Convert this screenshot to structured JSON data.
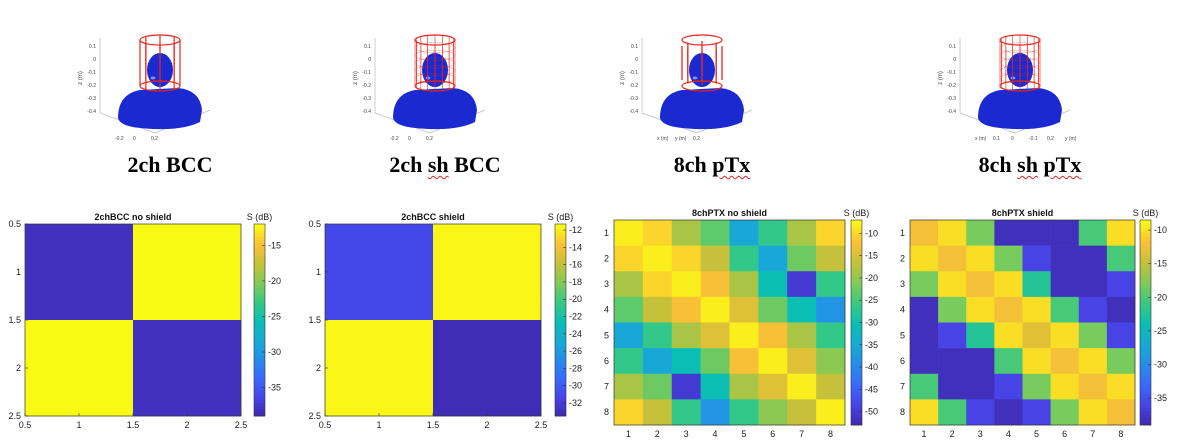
{
  "coil_panels": [
    {
      "caption_pre": "2ch ",
      "caption_mark": "",
      "caption_post": "BCC",
      "coil": "2ch-birdcage",
      "yticks": [
        "0.1",
        "0",
        "-0.1",
        "-0.2",
        "-0.3",
        "-0.4"
      ],
      "zlabel": "z (m)",
      "xticks": [
        "-0.2",
        "0",
        "0.2"
      ]
    },
    {
      "caption_pre": "2ch ",
      "caption_mark": "sh",
      "caption_post": " BCC",
      "coil": "2ch-shielded-birdcage",
      "yticks": [
        "0.1",
        "0",
        "-0.1",
        "-0.2",
        "-0.3",
        "-0.4"
      ],
      "zlabel": "z (m)",
      "xticks": [
        "-0.2",
        "0",
        "0.2"
      ]
    },
    {
      "caption_pre": "8ch ",
      "caption_mark": "pTx",
      "caption_post": "",
      "coil": "8ch-ptx",
      "yticks": [
        "0.1",
        "0",
        "-0.1",
        "-0.2",
        "-0.3",
        "-0.4"
      ],
      "zlabel": "z (m)",
      "xticks": [
        "x (m)",
        "y (m)",
        "0.2"
      ]
    },
    {
      "caption_pre": "8ch ",
      "caption_mark": "sh",
      "caption_post": " ",
      "caption_mark2": "pTx",
      "coil": "8ch-shielded-ptx",
      "yticks": [
        "0.1",
        "0",
        "-0.1",
        "-0.2",
        "-0.3",
        "-0.4"
      ],
      "zlabel": "z (m)",
      "xticks": [
        "x (m)",
        "0.1",
        "0",
        "-0.1",
        "0.2",
        "y (m)"
      ]
    }
  ],
  "colors": {
    "parula_low": "#3e26a8",
    "parula_high": "#f9fb15",
    "coil": "#e8261c",
    "phantom": "#1a2ad0"
  },
  "chart_data": [
    {
      "type": "heatmap",
      "title": "2chBCC no shield",
      "colorbar_label": "S (dB)",
      "x": [
        1,
        2
      ],
      "y": [
        1,
        2
      ],
      "xlim": [
        0.5,
        2.5
      ],
      "ylim": [
        0.5,
        2.5
      ],
      "xticks": [
        "0.5",
        "1",
        "1.5",
        "2",
        "2.5"
      ],
      "yticks": [
        "0.5",
        "1",
        "1.5",
        "2",
        "2.5"
      ],
      "clim": [
        -39,
        -12
      ],
      "cticks": [
        -15,
        -20,
        -25,
        -30,
        -35
      ],
      "values": [
        [
          -38,
          -12
        ],
        [
          -12,
          -38
        ]
      ]
    },
    {
      "type": "heatmap",
      "title": "2chBCC shield",
      "colorbar_label": "S (dB)",
      "x": [
        1,
        2
      ],
      "y": [
        1,
        2
      ],
      "xlim": [
        0.5,
        2.5
      ],
      "ylim": [
        0.5,
        2.5
      ],
      "xticks": [
        "0.5",
        "1",
        "1.5",
        "2",
        "2.5"
      ],
      "yticks": [
        "0.5",
        "1",
        "1.5",
        "2",
        "2.5"
      ],
      "clim": [
        -33.5,
        -11.3
      ],
      "cticks": [
        -12,
        -14,
        -16,
        -18,
        -20,
        -22,
        -24,
        -26,
        -28,
        -30,
        -32
      ],
      "values": [
        [
          -31,
          -11.5
        ],
        [
          -11.5,
          -33
        ]
      ]
    },
    {
      "type": "heatmap",
      "title": "8chPTX no shield",
      "colorbar_label": "S (dB)",
      "x": [
        1,
        2,
        3,
        4,
        5,
        6,
        7,
        8
      ],
      "y": [
        1,
        2,
        3,
        4,
        5,
        6,
        7,
        8
      ],
      "xticks": [
        "1",
        "2",
        "3",
        "4",
        "5",
        "6",
        "7",
        "8"
      ],
      "yticks": [
        "1",
        "2",
        "3",
        "4",
        "5",
        "6",
        "7",
        "8"
      ],
      "clim": [
        -53,
        -7
      ],
      "cticks": [
        -10,
        -15,
        -20,
        -25,
        -30,
        -35,
        -40,
        -45,
        -50
      ],
      "values": [
        [
          -8,
          -10,
          -18,
          -23,
          -35,
          -26,
          -18,
          -10
        ],
        [
          -10,
          -8,
          -10,
          -16,
          -26,
          -35,
          -22,
          -16
        ],
        [
          -18,
          -10,
          -8,
          -12,
          -18,
          -30,
          -50,
          -26
        ],
        [
          -23,
          -16,
          -12,
          -8,
          -14,
          -22,
          -30,
          -38
        ],
        [
          -35,
          -26,
          -18,
          -14,
          -8,
          -12,
          -18,
          -26
        ],
        [
          -26,
          -35,
          -30,
          -22,
          -12,
          -8,
          -14,
          -20
        ],
        [
          -18,
          -22,
          -50,
          -30,
          -18,
          -14,
          -8,
          -16
        ],
        [
          -10,
          -16,
          -26,
          -38,
          -26,
          -20,
          -16,
          -8
        ]
      ]
    },
    {
      "type": "heatmap",
      "title": "8chPTX shield",
      "colorbar_label": "S (dB)",
      "x": [
        1,
        2,
        3,
        4,
        5,
        6,
        7,
        8
      ],
      "y": [
        1,
        2,
        3,
        4,
        5,
        6,
        7,
        8
      ],
      "xticks": [
        "1",
        "2",
        "3",
        "4",
        "5",
        "6",
        "7",
        "8"
      ],
      "yticks": [
        "1",
        "2",
        "3",
        "4",
        "5",
        "6",
        "7",
        "8"
      ],
      "clim": [
        -39,
        -8.5
      ],
      "cticks": [
        -10,
        -15,
        -20,
        -25,
        -30,
        -35
      ],
      "values": [
        [
          -12,
          -10,
          -18,
          -38,
          -38,
          -38,
          -20,
          -10
        ],
        [
          -10,
          -12,
          -10,
          -18,
          -36,
          -38,
          -38,
          -20
        ],
        [
          -18,
          -10,
          -12,
          -10,
          -22,
          -38,
          -38,
          -36
        ],
        [
          -38,
          -18,
          -10,
          -12,
          -10,
          -20,
          -36,
          -38
        ],
        [
          -38,
          -36,
          -22,
          -10,
          -13,
          -10,
          -18,
          -36
        ],
        [
          -38,
          -38,
          -38,
          -20,
          -10,
          -12,
          -10,
          -18
        ],
        [
          -20,
          -38,
          -38,
          -36,
          -18,
          -10,
          -12,
          -10
        ],
        [
          -10,
          -20,
          -36,
          -38,
          -36,
          -18,
          -10,
          -12
        ]
      ]
    }
  ]
}
